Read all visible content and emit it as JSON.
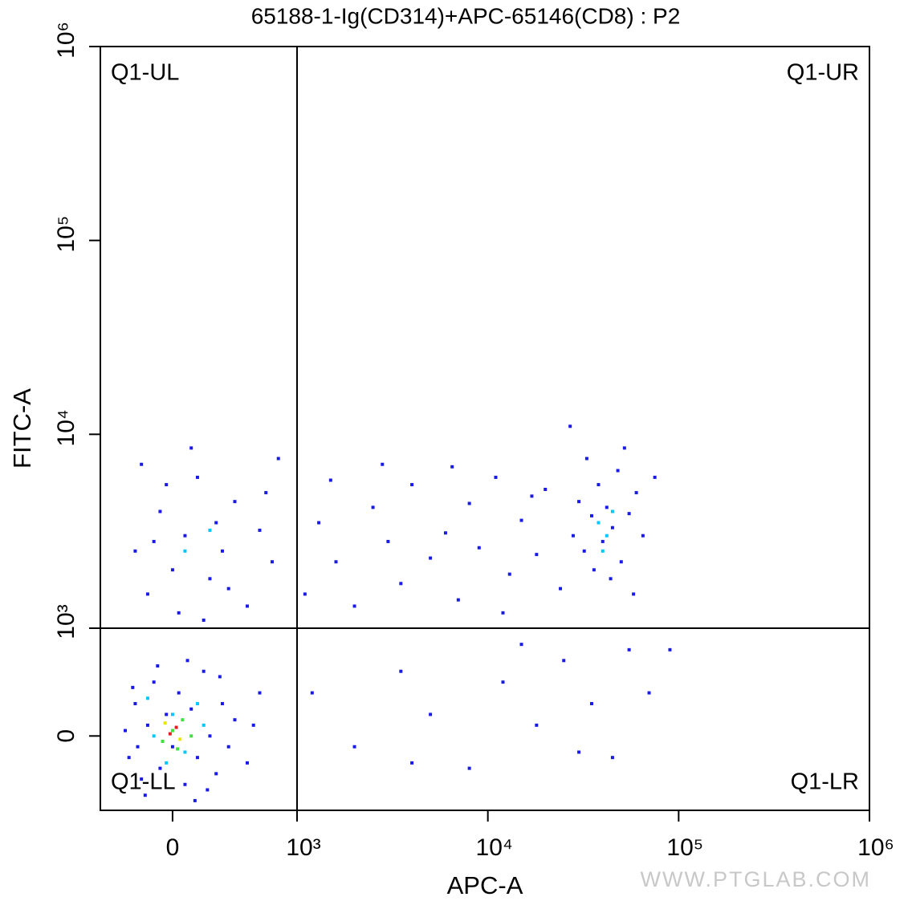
{
  "chart_data": {
    "type": "scatter",
    "title": "65188-1-Ig(CD314)+APC-65146(CD8) : P2",
    "x_label": "APC-A",
    "y_label": "FITC-A",
    "watermark": "WWW.PTGLAB.COM",
    "quadrant_labels": {
      "ul": "Q1-UL",
      "ur": "Q1-UR",
      "ll": "Q1-LL",
      "lr": "Q1-LR"
    },
    "gate": {
      "x": 1000,
      "y": 1000
    },
    "xlim": [
      -580,
      1000000
    ],
    "ylim": [
      -690,
      1000000
    ],
    "xticks": [
      0,
      {
        "value": 1000,
        "label": "10³"
      },
      {
        "value": 10000,
        "label": "10⁴"
      },
      {
        "value": 100000,
        "label": "10⁵"
      },
      {
        "value": 1000000,
        "label": "10⁶"
      }
    ],
    "yticks": [
      0,
      {
        "value": 1000,
        "label": "10³"
      },
      {
        "value": 10000,
        "label": "10⁴"
      },
      {
        "value": 100000,
        "label": "10⁵"
      },
      {
        "value": 1000000,
        "label": "10⁶"
      }
    ],
    "series": [
      {
        "color": "#1a1ae6",
        "x": [
          -350,
          -300,
          -250,
          -200,
          -150,
          -100,
          -50,
          0,
          50,
          100,
          150,
          200,
          250,
          300,
          350,
          400,
          450,
          -380,
          -280,
          120,
          -120,
          280,
          500,
          600,
          700,
          -320,
          180,
          -220,
          380,
          650,
          -300,
          -200,
          -100,
          0,
          100,
          200,
          300,
          400,
          500,
          600,
          700,
          800,
          -250,
          50,
          150,
          -150,
          350,
          250,
          750,
          -50,
          450,
          850,
          1100,
          1300,
          1600,
          2000,
          2500,
          3000,
          3500,
          4000,
          5000,
          6000,
          7000,
          8000,
          9000,
          11000,
          13000,
          15000,
          18000,
          20000,
          24000,
          1500,
          2800,
          6500,
          12000,
          17000,
          28000,
          30000,
          32000,
          35000,
          38000,
          40000,
          42000,
          45000,
          48000,
          50000,
          55000,
          60000,
          33000,
          44000,
          52000,
          65000,
          36000,
          58000,
          75000,
          27000,
          1200,
          2000,
          3500,
          5000,
          8000,
          12000,
          18000,
          25000,
          35000,
          45000,
          55000,
          70000,
          30000,
          15000,
          4000,
          90000
        ],
        "values": [
          -200,
          300,
          -400,
          100,
          500,
          -300,
          200,
          -100,
          400,
          -450,
          250,
          -200,
          600,
          0,
          -350,
          300,
          -100,
          50,
          -100,
          700,
          650,
          -500,
          150,
          -250,
          400,
          450,
          -600,
          -550,
          550,
          100,
          2500,
          1500,
          4000,
          2000,
          3000,
          6000,
          1800,
          2500,
          4500,
          1300,
          3200,
          2200,
          7000,
          1200,
          8500,
          2800,
          3500,
          1100,
          5000,
          5500,
          1600,
          7500,
          1500,
          3500,
          2200,
          1300,
          4200,
          2800,
          1700,
          5500,
          2300,
          3100,
          1400,
          4400,
          2600,
          6000,
          1900,
          3600,
          2400,
          5200,
          1600,
          5800,
          7000,
          6800,
          1200,
          4800,
          3000,
          4500,
          2500,
          3800,
          5500,
          2800,
          4200,
          3300,
          6500,
          2200,
          3900,
          5000,
          7500,
          1800,
          8500,
          3000,
          2000,
          1500,
          6000,
          11000,
          400,
          -100,
          600,
          200,
          -300,
          500,
          100,
          700,
          300,
          -200,
          800,
          400,
          -150,
          850,
          -250,
          800
        ]
      },
      {
        "color": "#00c8ff",
        "x": [
          -150,
          0,
          100,
          200,
          -50,
          250,
          -200,
          100,
          300,
          38000,
          42000,
          45000,
          40000
        ],
        "values": [
          0,
          200,
          -150,
          300,
          -250,
          100,
          350,
          2500,
          3200,
          3500,
          3000,
          4000,
          2500
        ]
      },
      {
        "color": "#40e040",
        "x": [
          0,
          80,
          -80,
          150,
          40
        ],
        "values": [
          50,
          150,
          -50,
          0,
          -120
        ]
      },
      {
        "color": "#e8e800",
        "x": [
          60,
          -60
        ],
        "values": [
          -30,
          120
        ]
      },
      {
        "color": "#e02020",
        "x": [
          30,
          -20
        ],
        "values": [
          80,
          20
        ]
      }
    ]
  }
}
